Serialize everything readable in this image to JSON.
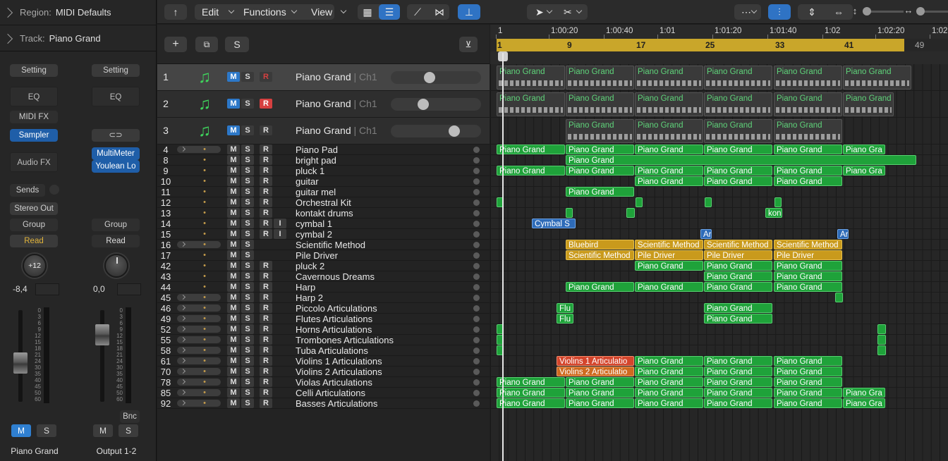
{
  "inspector": {
    "region_key": "Region:",
    "region_value": "MIDI Defaults",
    "track_key": "Track:",
    "track_value": "Piano Grand",
    "strip1": {
      "setting": "Setting",
      "eq": "EQ",
      "midi_fx": "MIDI FX",
      "instrument": "Sampler",
      "audio_fx": "Audio FX",
      "sends": "Sends",
      "output": "Stereo Out",
      "group": "Group",
      "automation": "Read",
      "pan": "+12",
      "volume": "-8,4",
      "mute": "M",
      "solo": "S",
      "name": "Piano Grand"
    },
    "strip2": {
      "setting": "Setting",
      "eq": "EQ",
      "plugin1": "MultiMeter",
      "plugin2": "Youlean Lo",
      "group": "Group",
      "automation": "Read",
      "volume": "0,0",
      "bounce": "Bnc",
      "mute": "M",
      "solo": "S",
      "name": "Output 1-2"
    },
    "scale": [
      "0",
      "3",
      "6",
      "9",
      "12",
      "15",
      "18",
      "21",
      "24",
      "30",
      "35",
      "40",
      "45",
      "50",
      "60"
    ]
  },
  "toolbar": {
    "edit": "Edit",
    "functions": "Functions",
    "view": "View"
  },
  "trackbar": {
    "add": "+",
    "solo": "S"
  },
  "ruler": {
    "labels": [
      "1",
      "1:00:20",
      "1:00:40",
      "1:01",
      "1:01:20",
      "1:01:40",
      "1:02",
      "1:02:20",
      "1:02"
    ],
    "bars": [
      "1",
      "9",
      "17",
      "25",
      "33",
      "41",
      "49"
    ]
  },
  "tracks": [
    {
      "num": "1",
      "name": "Piano Grand",
      "ch": "| Ch1"
    },
    {
      "num": "2",
      "name": "Piano Grand",
      "ch": "| Ch1"
    },
    {
      "num": "3",
      "name": "Piano Grand",
      "ch": "| Ch1"
    },
    {
      "num": "4",
      "name": "Piano Pad"
    },
    {
      "num": "8",
      "name": "bright pad"
    },
    {
      "num": "9",
      "name": "pluck 1"
    },
    {
      "num": "10",
      "name": "guitar"
    },
    {
      "num": "11",
      "name": "guitar mel"
    },
    {
      "num": "12",
      "name": "Orchestral Kit"
    },
    {
      "num": "13",
      "name": "kontakt drums"
    },
    {
      "num": "14",
      "name": "cymbal 1"
    },
    {
      "num": "15",
      "name": "cymbal 2"
    },
    {
      "num": "16",
      "name": "Scientific Method"
    },
    {
      "num": "17",
      "name": "Pile Driver"
    },
    {
      "num": "42",
      "name": "pluck 2"
    },
    {
      "num": "43",
      "name": "Cavernous Dreams"
    },
    {
      "num": "44",
      "name": "Harp"
    },
    {
      "num": "45",
      "name": "Harp 2"
    },
    {
      "num": "46",
      "name": "Piccolo Articulations"
    },
    {
      "num": "49",
      "name": "Flutes Articulations"
    },
    {
      "num": "52",
      "name": "Horns Articulations"
    },
    {
      "num": "55",
      "name": "Trombones Articulations"
    },
    {
      "num": "58",
      "name": "Tuba Articulations"
    },
    {
      "num": "61",
      "name": "Violins 1 Articulations"
    },
    {
      "num": "70",
      "name": "Violins 2 Articulations"
    },
    {
      "num": "78",
      "name": "Violas Articulations"
    },
    {
      "num": "85",
      "name": "Celli Articulations"
    },
    {
      "num": "92",
      "name": "Basses Articulations"
    }
  ],
  "labels": {
    "pg": "Piano Grand",
    "pgshort": "Piano Gra",
    "cym": "Cymbal S",
    "kon": "kon",
    "ar": "Ar",
    "blue": "Bluebird",
    "sci": "Scientific Method",
    "sci2": "Scientific Method",
    "pile": "Pile Driver",
    "flu": "Flu",
    "v1": "Violins 1 Articulatio",
    "v2": "Violins 2 Articulatio"
  }
}
